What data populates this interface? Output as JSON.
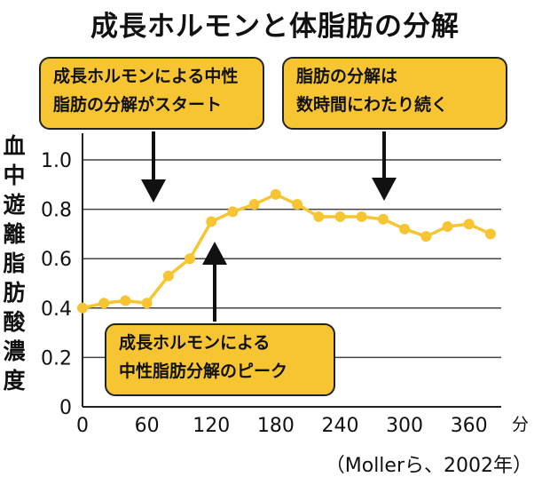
{
  "title": "成長ホルモンと体脂肪の分解",
  "callouts": {
    "start": [
      "成長ホルモンによる中性",
      "脂肪の分解がスタート"
    ],
    "continue": [
      "脂肪の分解は",
      "数時間にわたり続く"
    ],
    "peak": [
      "成長ホルモンによる",
      "中性脂肪分解のピーク"
    ]
  },
  "source": "（Mollerら、2002年）",
  "colors": {
    "series": "#f7c531",
    "callout_fill": "#f7c531",
    "axis": "#222222",
    "grid": "#444444"
  },
  "chart_data": {
    "type": "line",
    "title": "成長ホルモンと体脂肪の分解",
    "ylabel": "血中遊離脂肪酸濃度",
    "xlabel": "",
    "x_unit": "分",
    "xlim": [
      0,
      390
    ],
    "ylim": [
      0,
      1.0
    ],
    "x_ticks": [
      0,
      60,
      120,
      180,
      240,
      300,
      360
    ],
    "y_ticks": [
      0,
      0.2,
      0.4,
      0.6,
      0.8,
      1.0
    ],
    "y_tick_labels": [
      "0",
      "0.2",
      "0.4",
      "0.6",
      "0.8",
      "1.0"
    ],
    "grid": "horizontal",
    "series": [
      {
        "x": [
          0,
          20,
          40,
          60,
          80,
          100,
          120,
          140,
          160,
          180,
          200,
          220,
          240,
          260,
          280,
          300,
          320,
          340,
          360,
          380
        ],
        "y": [
          0.4,
          0.42,
          0.43,
          0.42,
          0.53,
          0.6,
          0.75,
          0.79,
          0.82,
          0.86,
          0.82,
          0.77,
          0.77,
          0.77,
          0.76,
          0.72,
          0.69,
          0.73,
          0.74,
          0.7
        ]
      }
    ]
  }
}
